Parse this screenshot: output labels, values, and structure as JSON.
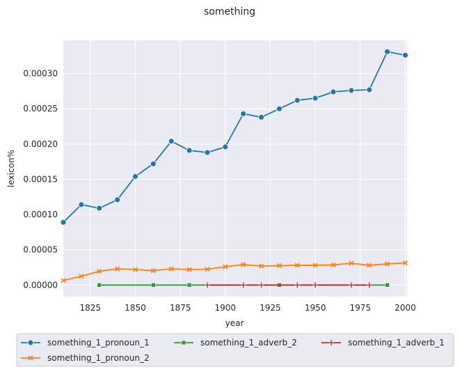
{
  "chart_data": {
    "type": "line",
    "title": "something",
    "xlabel": "year",
    "ylabel": "lexicon%",
    "xlim": [
      1810,
      2001
    ],
    "ylim": [
      -1.65e-05,
      0.000347
    ],
    "xticks": [
      1825,
      1850,
      1875,
      1900,
      1925,
      1950,
      1975,
      2000
    ],
    "xtick_labels": [
      "1825",
      "1850",
      "1875",
      "1900",
      "1925",
      "1950",
      "1975",
      "2000"
    ],
    "yticks": [
      0,
      5e-05,
      0.0001,
      0.00015,
      0.0002,
      0.00025,
      0.0003
    ],
    "ytick_labels": [
      "0.00000",
      "0.00005",
      "0.00010",
      "0.00015",
      "0.00020",
      "0.00025",
      "0.00030"
    ],
    "grid": true,
    "legend_position": "bottom",
    "series": [
      {
        "name": "something_1_pronoun_1",
        "color": "#1f77b4",
        "marker": "circle",
        "x": [
          1810,
          1820,
          1830,
          1840,
          1850,
          1860,
          1870,
          1880,
          1890,
          1900,
          1910,
          1920,
          1930,
          1940,
          1950,
          1960,
          1970,
          1980,
          1990,
          2000
        ],
        "y": [
          8.9e-05,
          0.000114,
          0.000109,
          0.000121,
          0.000154,
          0.000172,
          0.000204,
          0.000191,
          0.000188,
          0.000196,
          0.000243,
          0.000238,
          0.00025,
          0.000262,
          0.000265,
          0.000274,
          0.000276,
          0.000277,
          0.000331,
          0.000326
        ]
      },
      {
        "name": "something_1_pronoun_2",
        "color": "#ff7f0e",
        "marker": "x",
        "x": [
          1810,
          1820,
          1830,
          1840,
          1850,
          1860,
          1870,
          1880,
          1890,
          1900,
          1910,
          1920,
          1930,
          1940,
          1950,
          1960,
          1970,
          1980,
          1990,
          2000
        ],
        "y": [
          6.3e-06,
          1.25e-05,
          1.95e-05,
          2.3e-05,
          2.2e-05,
          2.05e-05,
          2.3e-05,
          2.2e-05,
          2.25e-05,
          2.6e-05,
          2.9e-05,
          2.7e-05,
          2.75e-05,
          2.8e-05,
          2.8e-05,
          2.85e-05,
          3.1e-05,
          2.8e-05,
          3e-05,
          3.15e-05
        ]
      },
      {
        "name": "something_1_adverb_2",
        "color": "#2ca02c",
        "marker": "square",
        "x": [
          1830,
          1860,
          1880,
          1930,
          1990
        ],
        "y": [
          0.0,
          0.0,
          0.0,
          0.0,
          0.0
        ]
      },
      {
        "name": "something_1_adverb_1",
        "color": "#d62728",
        "marker": "plus",
        "x": [
          1890,
          1910,
          1920,
          1940,
          1950,
          1970,
          1980
        ],
        "y": [
          0.0,
          0.0,
          0.0,
          0.0,
          0.0,
          0.0,
          0.0
        ]
      }
    ]
  }
}
